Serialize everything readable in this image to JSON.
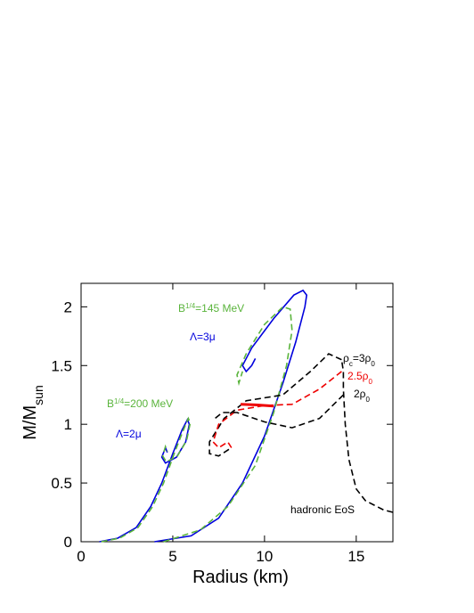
{
  "chart_data": {
    "type": "line",
    "xlabel": "Radius (km)",
    "ylabel": [
      "M/M",
      "sun"
    ],
    "xlim": [
      0,
      17
    ],
    "xticks": [
      0,
      5,
      10,
      15
    ],
    "ylim": [
      0,
      2.2
    ],
    "yticks": [
      0,
      0.5,
      1,
      1.5,
      2
    ],
    "series": [
      {
        "color": "#0000dd",
        "style": "solid",
        "x": [
          1.0,
          2.0,
          3.0,
          3.8,
          4.4,
          5.0,
          5.5,
          5.8,
          5.9,
          5.7,
          5.2,
          4.6,
          4.4,
          4.6,
          4.7
        ],
        "values": [
          0,
          0.03,
          0.12,
          0.3,
          0.5,
          0.75,
          0.95,
          1.04,
          1.0,
          0.85,
          0.72,
          0.67,
          0.72,
          0.8,
          0.76
        ]
      },
      {
        "color": "#5ab43c",
        "style": "dashed",
        "x": [
          1.1,
          2.1,
          3.1,
          3.9,
          4.5,
          5.1,
          5.6,
          5.85,
          5.95,
          5.75,
          5.25,
          4.65,
          4.45,
          4.6,
          4.7
        ],
        "values": [
          0,
          0.03,
          0.12,
          0.3,
          0.5,
          0.76,
          0.96,
          1.05,
          1.01,
          0.86,
          0.73,
          0.68,
          0.73,
          0.81,
          0.77
        ]
      },
      {
        "color": "#0000dd",
        "style": "solid",
        "x": [
          4.0,
          6.0,
          7.5,
          8.8,
          10.0,
          11.0,
          11.7,
          12.2,
          12.3,
          12.1,
          11.6,
          10.5,
          9.3,
          8.8,
          9.0,
          9.3,
          9.5
        ],
        "values": [
          0,
          0.05,
          0.2,
          0.5,
          0.9,
          1.35,
          1.7,
          2.0,
          2.1,
          2.14,
          2.1,
          1.9,
          1.65,
          1.5,
          1.45,
          1.5,
          1.56
        ]
      },
      {
        "color": "#5ab43c",
        "style": "dashed",
        "x": [
          4.5,
          6.5,
          8.0,
          9.5,
          10.5,
          11.2,
          11.5,
          11.4,
          11.0,
          10.0,
          9.0,
          8.5,
          8.6,
          8.8
        ],
        "values": [
          0,
          0.1,
          0.3,
          0.65,
          1.1,
          1.5,
          1.8,
          1.98,
          2.0,
          1.85,
          1.6,
          1.42,
          1.35,
          1.45
        ]
      },
      {
        "color": "#000000",
        "style": "dashed",
        "x": [
          14.2,
          13.5,
          12.5,
          11.0,
          9.0,
          7.8,
          7.0,
          7.0,
          7.5,
          8.2
        ],
        "values": [
          1.55,
          1.6,
          1.45,
          1.25,
          1.2,
          1.05,
          0.85,
          0.75,
          0.73,
          0.8
        ]
      },
      {
        "color": "#ee0000",
        "style": "dashed",
        "x": [
          14.2,
          13.0,
          11.5,
          10.0,
          8.5,
          7.5,
          7.2,
          7.5,
          8.0,
          8.2
        ],
        "values": [
          1.45,
          1.3,
          1.17,
          1.16,
          1.12,
          1.0,
          0.85,
          0.8,
          0.85,
          0.8
        ]
      },
      {
        "color": "#000000",
        "style": "dashed",
        "x": [
          14.3,
          13.0,
          11.5,
          10.0,
          8.5,
          7.7,
          7.3
        ],
        "values": [
          1.25,
          1.05,
          0.97,
          1.02,
          1.1,
          1.1,
          1.05
        ]
      },
      {
        "color": "#000000",
        "style": "dashed",
        "x": [
          17.0,
          16.5,
          15.5,
          15.0,
          14.6,
          14.4,
          14.3,
          14.3,
          14.2
        ],
        "values": [
          0.25,
          0.27,
          0.35,
          0.45,
          0.7,
          1.0,
          1.3,
          1.45,
          1.55
        ]
      },
      {
        "color": "#ee0000",
        "style": "solid",
        "width": 3,
        "x": [
          8.7,
          9.5,
          10.5
        ],
        "values": [
          1.17,
          1.165,
          1.155
        ]
      }
    ],
    "annotations": [
      {
        "color": "#5ab43c",
        "parts": [
          "B",
          "1/4",
          "=145 MeV"
        ],
        "shift": [
          "",
          "super",
          ""
        ]
      },
      {
        "color": "#0000dd",
        "parts": [
          "Λ=3μ"
        ],
        "shift": [
          ""
        ]
      },
      {
        "color": "#5ab43c",
        "parts": [
          "B",
          "1/4",
          "=200 MeV"
        ],
        "shift": [
          "",
          "super",
          ""
        ]
      },
      {
        "color": "#0000dd",
        "parts": [
          "Λ=2μ"
        ],
        "shift": [
          ""
        ]
      },
      {
        "color": "#000000",
        "parts": [
          "ρ",
          "c",
          "=3ρ",
          "0"
        ],
        "shift": [
          "",
          "sub",
          "",
          "sub"
        ]
      },
      {
        "color": "#ee0000",
        "parts": [
          "2.5ρ",
          "0"
        ],
        "shift": [
          "",
          "sub"
        ]
      },
      {
        "color": "#000000",
        "parts": [
          "2ρ",
          "0"
        ],
        "shift": [
          "",
          "sub"
        ]
      },
      {
        "color": "#000000",
        "parts": [
          "hadronic EoS"
        ],
        "shift": [
          ""
        ]
      }
    ]
  }
}
